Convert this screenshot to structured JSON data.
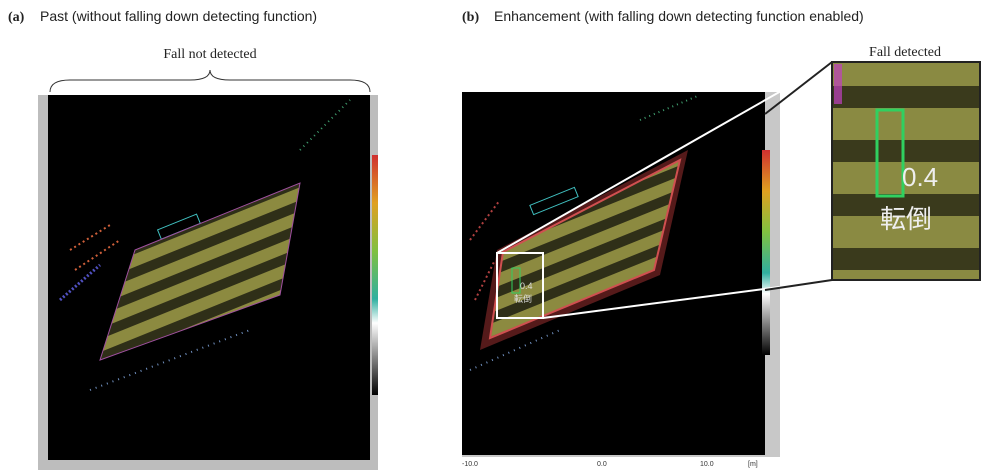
{
  "panels": [
    {
      "label": "(a)",
      "title": "Past (without falling down detecting function)",
      "annotation": "Fall not detected"
    },
    {
      "label": "(b)",
      "title": "Enhancement (with falling down detecting function enabled)",
      "annotation": "Fall detected",
      "detection": {
        "value_text": "0.4",
        "status": "転倒"
      },
      "x_axis_labels": [
        "-10.0",
        "0.0",
        "10.0",
        "[m]"
      ]
    }
  ]
}
